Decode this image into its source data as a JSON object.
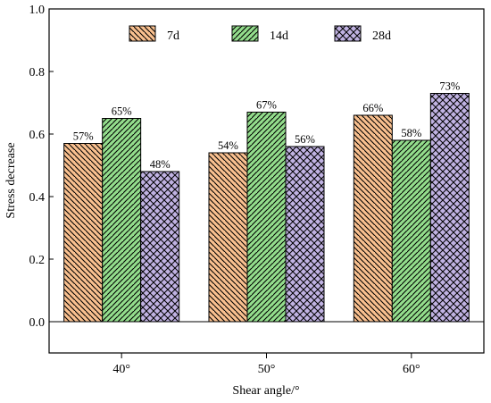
{
  "chart_data": {
    "type": "bar",
    "categories": [
      "40°",
      "50°",
      "60°"
    ],
    "series": [
      {
        "name": "7d",
        "values": [
          0.57,
          0.54,
          0.66
        ],
        "labels": [
          "57%",
          "54%",
          "66%"
        ],
        "color": "#f9c08f",
        "pattern": "diagonal-down"
      },
      {
        "name": "14d",
        "values": [
          0.65,
          0.67,
          0.58
        ],
        "labels": [
          "65%",
          "67%",
          "58%"
        ],
        "color": "#93dd8c",
        "pattern": "diagonal-up"
      },
      {
        "name": "28d",
        "values": [
          0.48,
          0.56,
          0.73
        ],
        "labels": [
          "48%",
          "56%",
          "73%"
        ],
        "color": "#c0b2e2",
        "pattern": "crosshatch"
      }
    ],
    "xlabel": "Shear angle/°",
    "ylabel": "Stress decrease",
    "ylim": [
      -0.1,
      1.0
    ],
    "yticks": [
      0.0,
      0.2,
      0.4,
      0.6,
      0.8,
      1.0
    ],
    "ytick_labels": [
      "0.0",
      "0.2",
      "0.4",
      "0.6",
      "0.8",
      "1.0"
    ],
    "baseline": 0.0,
    "grid": false,
    "legend_position": "top"
  }
}
